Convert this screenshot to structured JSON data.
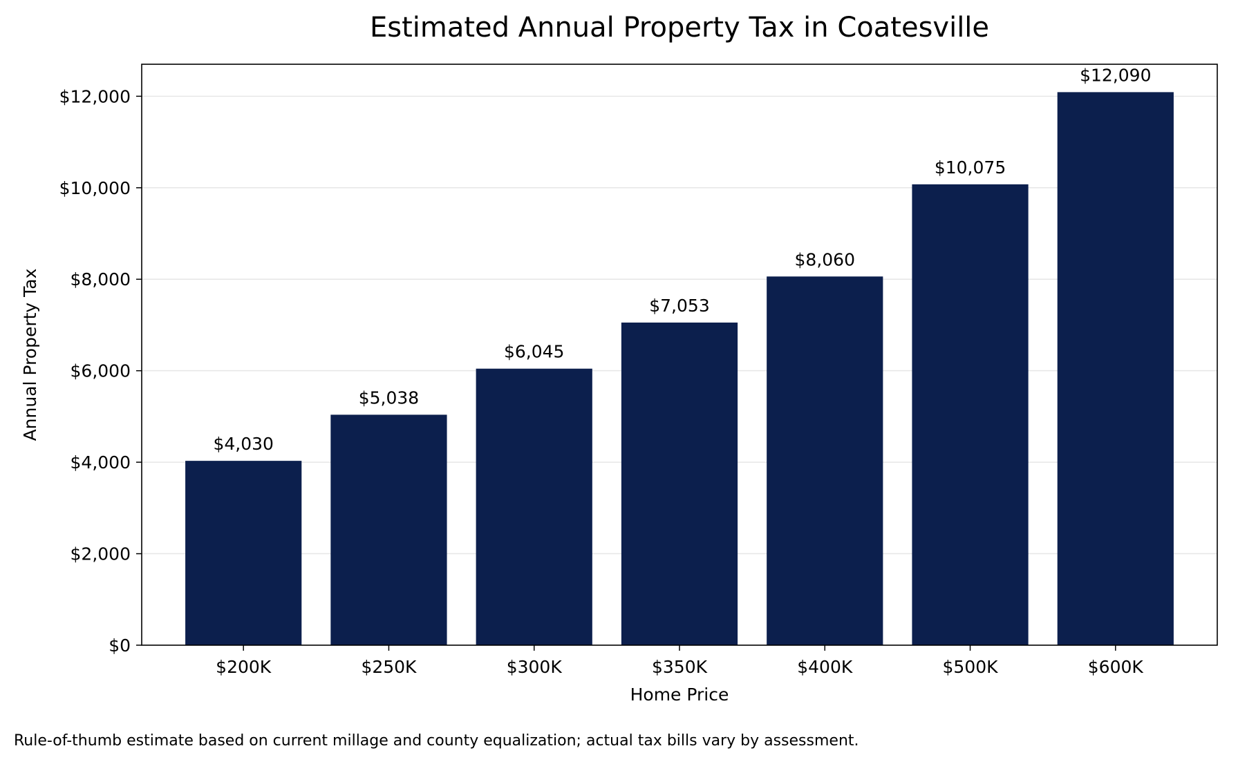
{
  "chart_data": {
    "type": "bar",
    "title": "Estimated Annual Property Tax in Coatesville",
    "xlabel": "Home Price",
    "ylabel": "Annual Property Tax",
    "categories": [
      "$200K",
      "$250K",
      "$300K",
      "$350K",
      "$400K",
      "$500K",
      "$600K"
    ],
    "values": [
      4030,
      5038,
      6045,
      7053,
      8060,
      10075,
      12090
    ],
    "value_labels": [
      "$4,030",
      "$5,038",
      "$6,045",
      "$7,053",
      "$8,060",
      "$10,075",
      "$12,090"
    ],
    "ylim": [
      0,
      12700
    ],
    "yticks": [
      0,
      2000,
      4000,
      6000,
      8000,
      10000,
      12000
    ],
    "ytick_labels": [
      "$0",
      "$2,000",
      "$4,000",
      "$6,000",
      "$8,000",
      "$10,000",
      "$12,000"
    ],
    "grid": "horizontal",
    "legend": "none",
    "bar_color": "#0c1f4d",
    "grid_color": "#e6e6e6"
  },
  "footnote": "Rule-of-thumb estimate based on current millage and county equalization; actual tax bills vary by assessment."
}
